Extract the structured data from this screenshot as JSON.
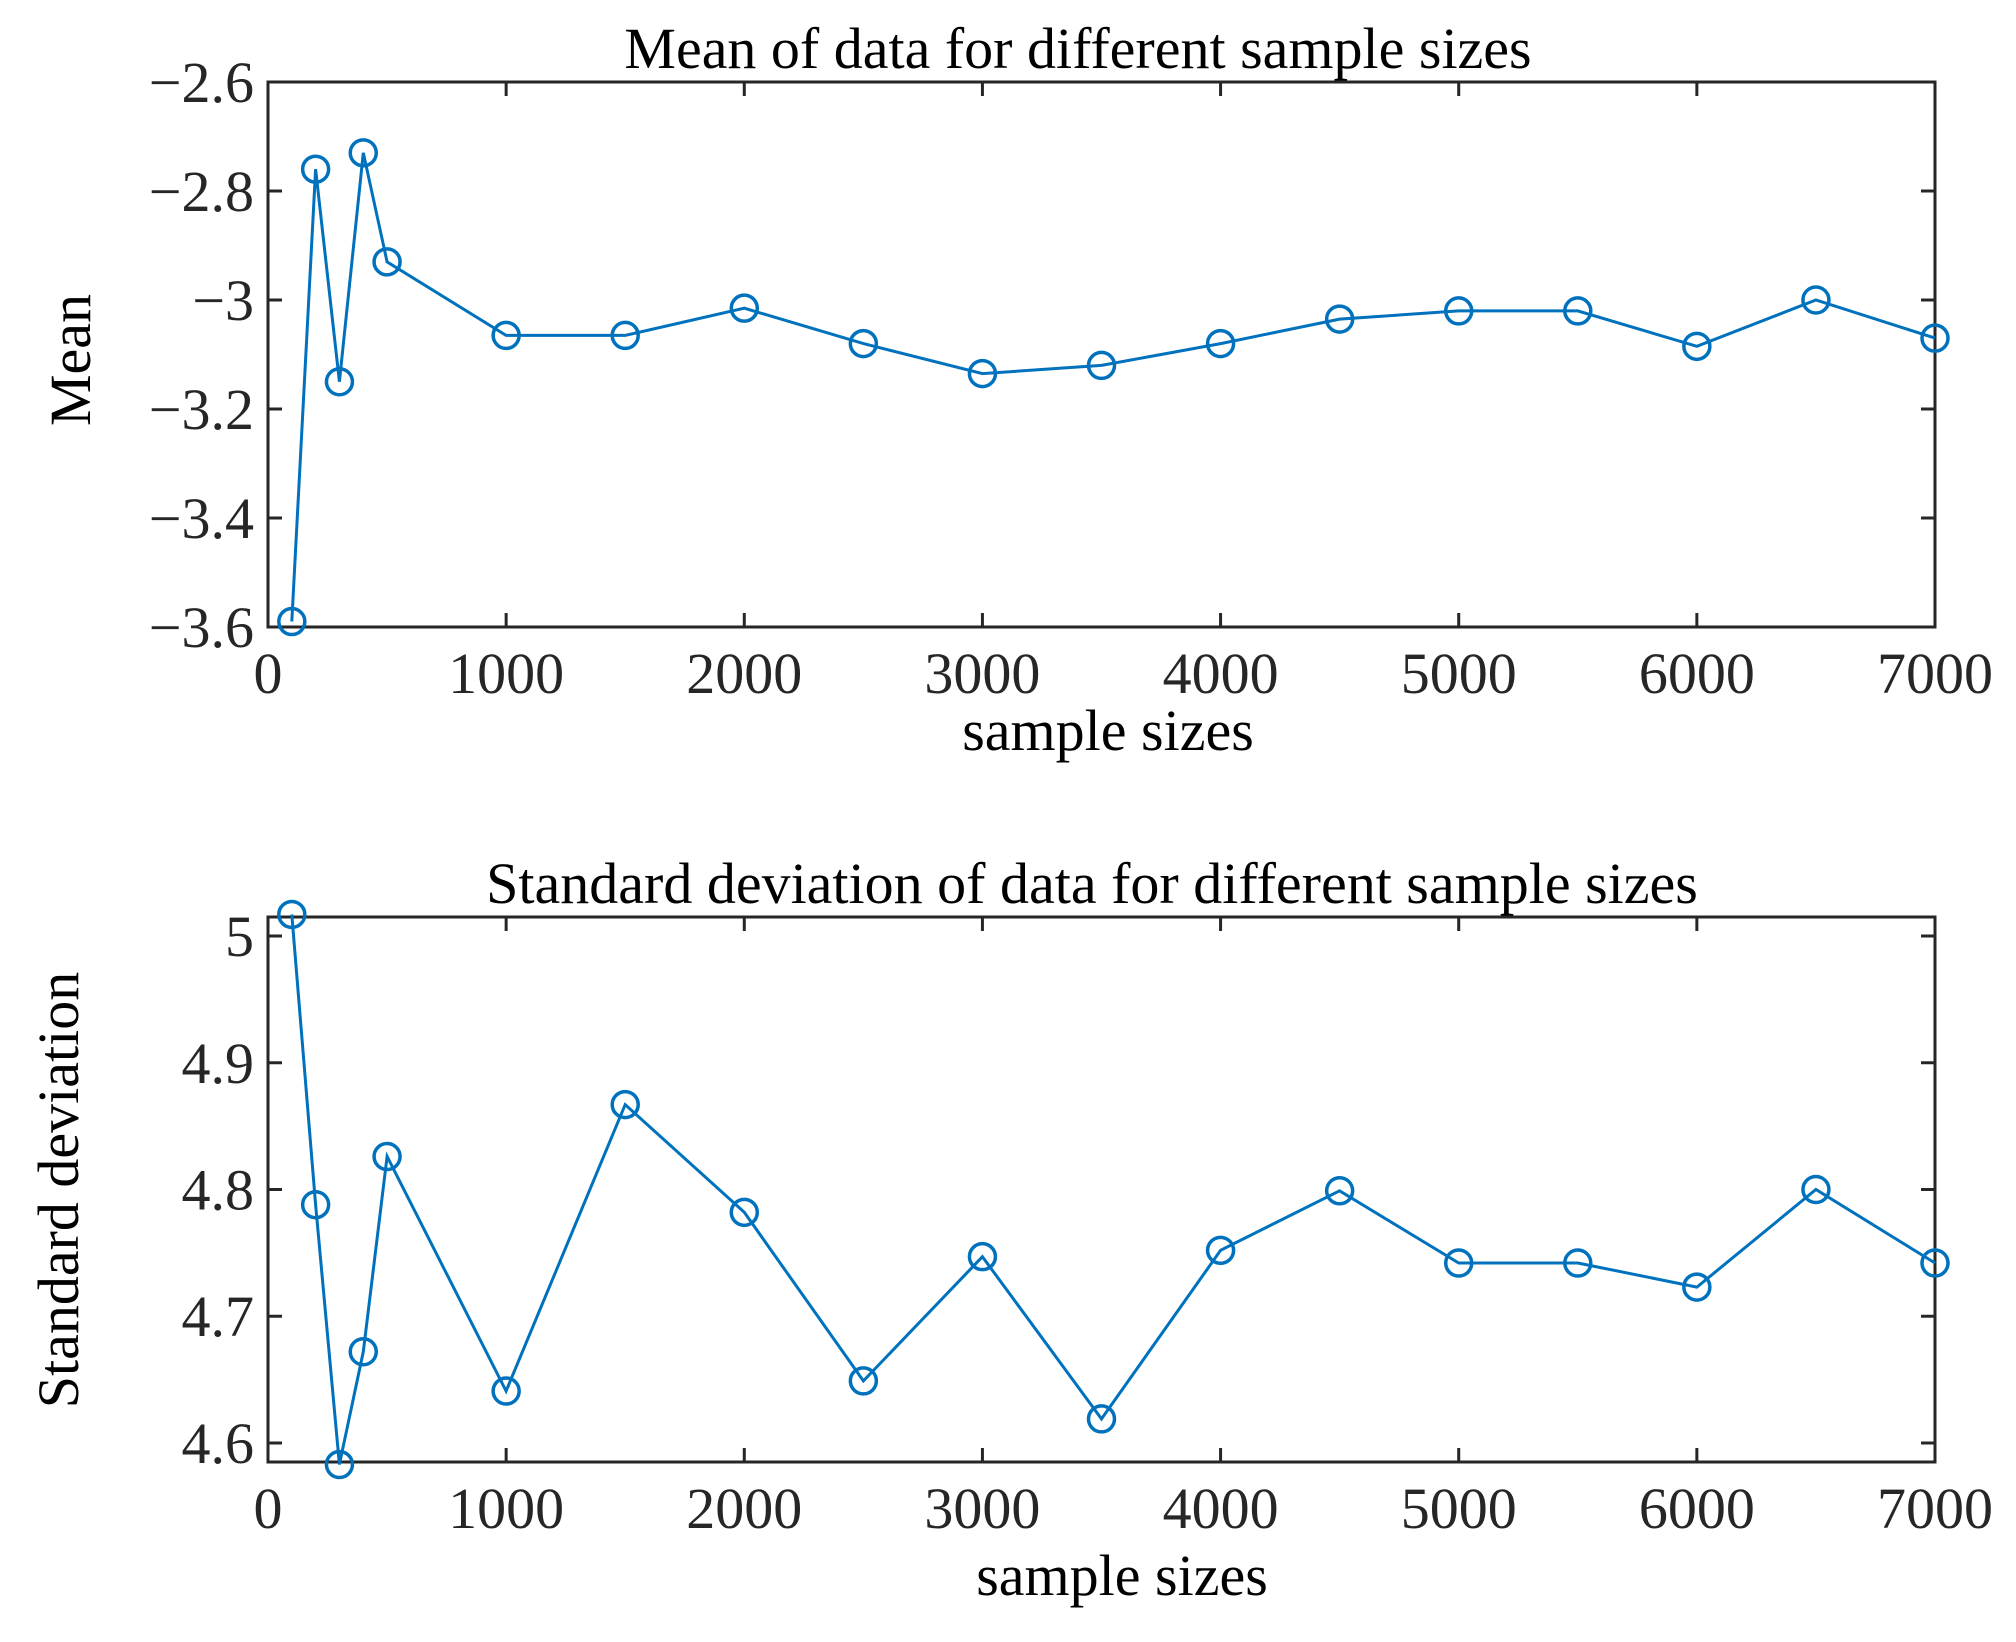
{
  "chart_data": [
    {
      "type": "line",
      "title": "Mean of data for different sample sizes",
      "xlabel": "sample sizes",
      "ylabel": "Mean",
      "xlim": [
        0,
        7000
      ],
      "ylim": [
        -3.6,
        -2.6
      ],
      "xticks": [
        0,
        1000,
        2000,
        3000,
        4000,
        5000,
        6000,
        7000
      ],
      "xtick_labels": [
        "0",
        "1000",
        "2000",
        "3000",
        "4000",
        "5000",
        "6000",
        "7000"
      ],
      "yticks": [
        -3.6,
        -3.4,
        -3.2,
        -3.0,
        -2.8,
        -2.6
      ],
      "ytick_labels": [
        "−3.6",
        "−3.4",
        "−3.2",
        "−3",
        "−2.8",
        "−2.6"
      ],
      "grid": false,
      "marker": "circle",
      "color": "#0072BD",
      "series": [
        {
          "name": "Mean",
          "x": [
            100,
            200,
            300,
            400,
            500,
            1000,
            1500,
            2000,
            2500,
            3000,
            3500,
            4000,
            4500,
            5000,
            5500,
            6000,
            6500,
            7000
          ],
          "values": [
            -3.59,
            -2.76,
            -3.15,
            -2.73,
            -2.93,
            -3.065,
            -3.065,
            -3.015,
            -3.08,
            -3.135,
            -3.12,
            -3.08,
            -3.035,
            -3.02,
            -3.02,
            -3.085,
            -3.0,
            -3.07
          ]
        }
      ]
    },
    {
      "type": "line",
      "title": "Standard deviation of data for different sample sizes",
      "xlabel": "sample sizes",
      "ylabel": "Standard deviation",
      "xlim": [
        0,
        7000
      ],
      "ylim": [
        4.585,
        5.015
      ],
      "xticks": [
        0,
        1000,
        2000,
        3000,
        4000,
        5000,
        6000,
        7000
      ],
      "xtick_labels": [
        "0",
        "1000",
        "2000",
        "3000",
        "4000",
        "5000",
        "6000",
        "7000"
      ],
      "yticks": [
        4.6,
        4.7,
        4.8,
        4.9,
        5.0
      ],
      "ytick_labels": [
        "4.6",
        "4.7",
        "4.8",
        "4.9",
        "5"
      ],
      "grid": false,
      "marker": "circle",
      "color": "#0072BD",
      "series": [
        {
          "name": "Standard deviation",
          "x": [
            100,
            200,
            300,
            400,
            500,
            1000,
            1500,
            2000,
            2500,
            3000,
            3500,
            4000,
            4500,
            5000,
            5500,
            6000,
            6500,
            7000
          ],
          "values": [
            5.017,
            4.788,
            4.583,
            4.672,
            4.826,
            4.641,
            4.867,
            4.782,
            4.649,
            4.747,
            4.619,
            4.752,
            4.799,
            4.742,
            4.742,
            4.723,
            4.8,
            4.742
          ]
        }
      ]
    }
  ]
}
